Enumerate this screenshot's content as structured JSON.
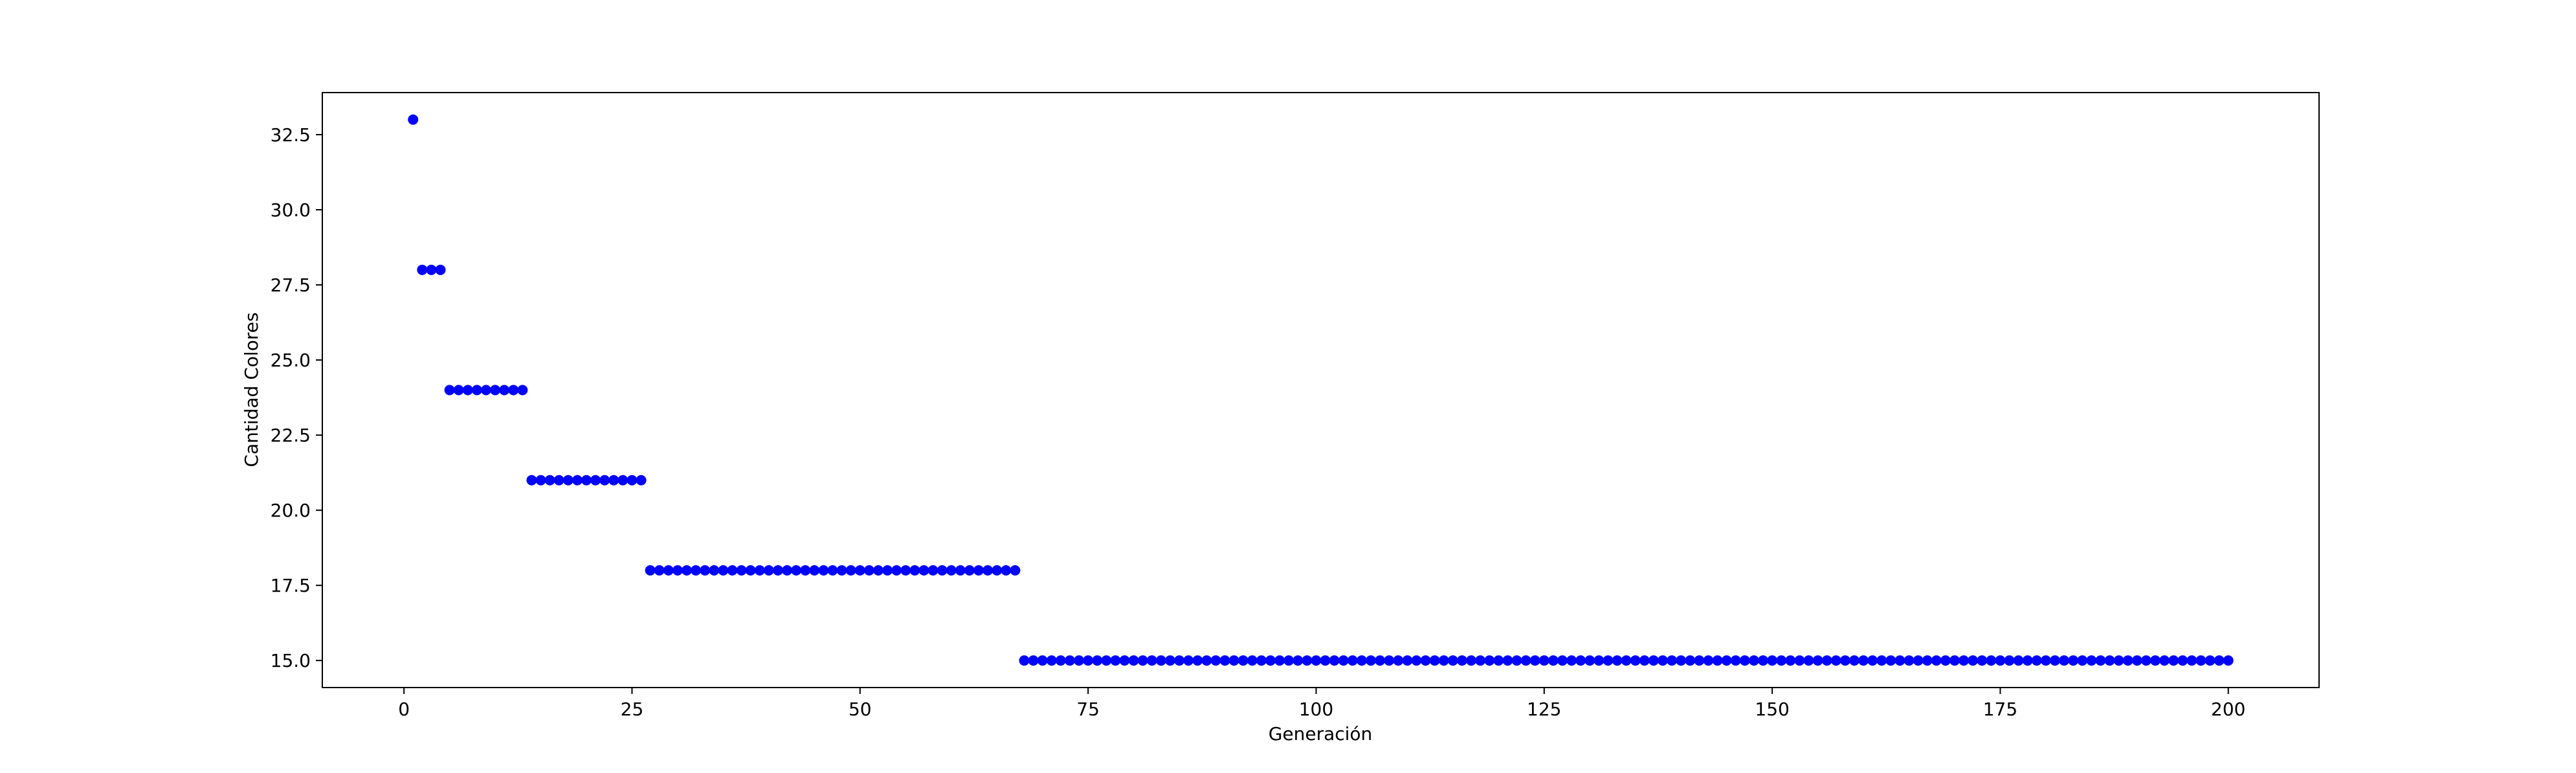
{
  "chart_data": {
    "type": "scatter",
    "title": "",
    "xlabel": "Generación",
    "ylabel": "Cantidad Colores",
    "xlim": [
      -8.95,
      209.95
    ],
    "ylim": [
      14.1,
      33.9
    ],
    "xticks": [
      0,
      25,
      50,
      75,
      100,
      125,
      150,
      175,
      200
    ],
    "xtick_labels": [
      "0",
      "25",
      "50",
      "75",
      "100",
      "125",
      "150",
      "175",
      "200"
    ],
    "yticks": [
      15.0,
      17.5,
      20.0,
      22.5,
      25.0,
      27.5,
      30.0,
      32.5
    ],
    "ytick_labels": [
      "15.0",
      "17.5",
      "20.0",
      "22.5",
      "25.0",
      "27.5",
      "30.0",
      "32.5"
    ],
    "grid": false,
    "marker_color": "#0000ff",
    "series": [
      {
        "segments": [
          {
            "x_start": 1,
            "x_end": 1,
            "y": 33
          },
          {
            "x_start": 2,
            "x_end": 4,
            "y": 28
          },
          {
            "x_start": 5,
            "x_end": 13,
            "y": 24
          },
          {
            "x_start": 14,
            "x_end": 26,
            "y": 21
          },
          {
            "x_start": 27,
            "x_end": 67,
            "y": 18
          },
          {
            "x_start": 68,
            "x_end": 200,
            "y": 15
          }
        ]
      }
    ]
  }
}
